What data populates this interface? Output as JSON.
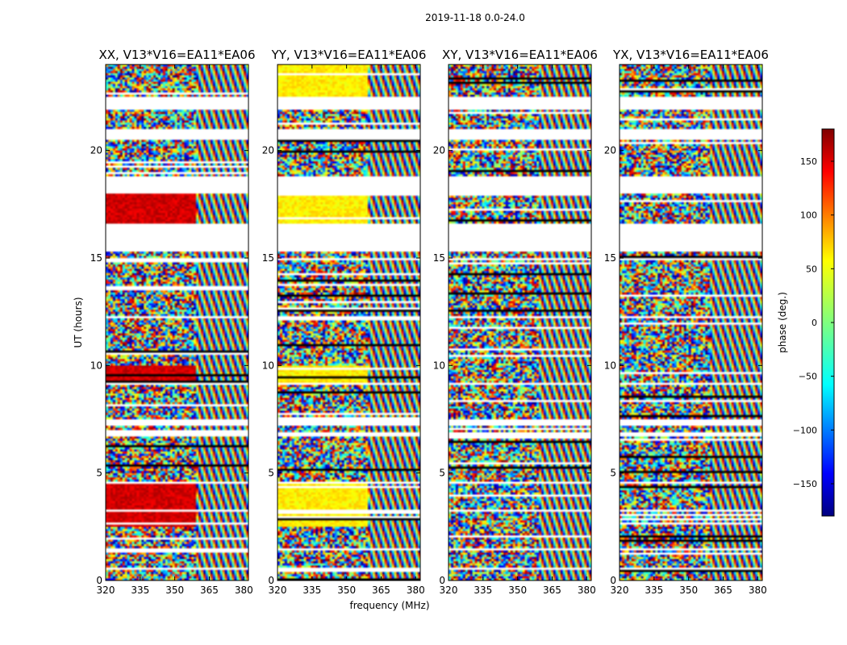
{
  "suptitle": "2019-11-18 0.0-24.0",
  "chart_data": {
    "type": "heatmap",
    "xlabel": "frequency (MHz)",
    "ylabel": "UT (hours)",
    "x_range": [
      320,
      382
    ],
    "x_ticks": [
      "320",
      "335",
      "350",
      "365",
      "380"
    ],
    "y_range": [
      0,
      24
    ],
    "y_ticks": [
      "0",
      "5",
      "10",
      "15",
      "20"
    ],
    "colormap": "jet",
    "colorbar": {
      "label": "phase (deg.)",
      "range": [
        -180,
        180
      ],
      "ticks": [
        "−150",
        "−100",
        "−50",
        "0",
        "50",
        "100",
        "150"
      ],
      "tick_values": [
        -150,
        -100,
        -50,
        0,
        50,
        100,
        150
      ]
    },
    "panels": [
      {
        "title": "XX, V13*V16=EA11*EA06",
        "pattern": "red"
      },
      {
        "title": "YY, V13*V16=EA11*EA06",
        "pattern": "yellow"
      },
      {
        "title": "XY, V13*V16=EA11*EA06",
        "pattern": "mixed"
      },
      {
        "title": "YX, V13*V16=EA11*EA06",
        "pattern": "mixed"
      }
    ],
    "data_segments_ut_hours": [
      [
        0.0,
        0.45
      ],
      [
        0.6,
        1.35
      ],
      [
        1.55,
        2.45
      ],
      [
        2.55,
        3.15
      ],
      [
        3.3,
        4.5
      ],
      [
        4.6,
        6.7
      ],
      [
        6.9,
        7.15
      ],
      [
        7.5,
        9.1
      ],
      [
        9.2,
        12.2
      ],
      [
        12.35,
        14.9
      ],
      [
        15.0,
        15.3
      ],
      [
        16.6,
        18.0
      ],
      [
        18.8,
        20.5
      ],
      [
        21.0,
        21.8
      ],
      [
        22.5,
        23.3
      ],
      [
        23.4,
        24.0
      ]
    ],
    "gap_ut_hours": [
      [
        0.45,
        0.6
      ],
      [
        1.35,
        1.55
      ],
      [
        7.15,
        7.5
      ],
      [
        12.2,
        12.35
      ],
      [
        15.3,
        16.6
      ],
      [
        18.0,
        18.8
      ],
      [
        20.5,
        21.0
      ],
      [
        21.8,
        22.5
      ]
    ]
  }
}
